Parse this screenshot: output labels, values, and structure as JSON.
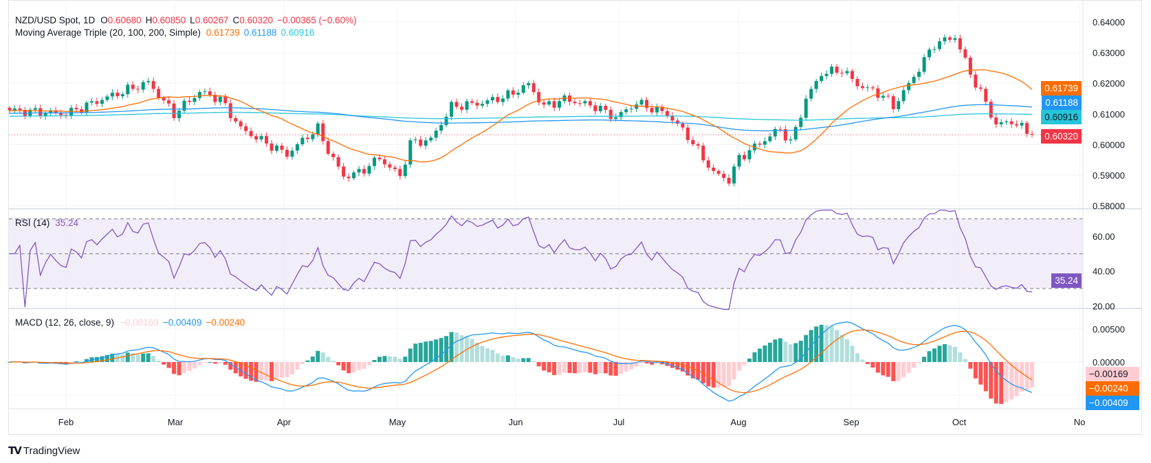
{
  "header": {
    "symbol": "NZD/USD Spot, 1D",
    "open_label": "O",
    "open": "0.60680",
    "high_label": "H",
    "high": "0.60850",
    "low_label": "L",
    "low": "0.60267",
    "close_label": "C",
    "close": "0.60320",
    "change": "−0.00365 (−0.60%)"
  },
  "ma": {
    "label": "Moving Average Triple (20, 100, 200, Simple)",
    "ma20": "0.61739",
    "ma100": "0.61188",
    "ma200": "0.60916"
  },
  "rsi": {
    "label": "RSI (14)",
    "value": "35.24"
  },
  "macd": {
    "label": "MACD (12, 26, close, 9)",
    "histogram": "−0.00169",
    "macd": "−0.00409",
    "signal": "−0.00240"
  },
  "price_axis": [
    "0.64000",
    "0.63000",
    "0.62000",
    "0.61000",
    "0.60000",
    "0.59000",
    "0.58000"
  ],
  "rsi_axis": [
    "60.00",
    "40.00",
    "20.00"
  ],
  "macd_axis": [
    "0.00500",
    "0.00000"
  ],
  "time_axis": [
    "Feb",
    "Mar",
    "Apr",
    "May",
    "Jun",
    "Jul",
    "Aug",
    "Sep",
    "Oct",
    "No"
  ],
  "badges": {
    "ma20": "0.61739",
    "ma100": "0.61188",
    "ma200": "0.60916",
    "last": "0.60320",
    "rsi": "35.24",
    "hist": "−0.00169",
    "signal": "−0.00240",
    "macd": "−0.00409"
  },
  "branding": "TradingView",
  "colors": {
    "up": "#089981",
    "down": "#f23645",
    "ma20": "#ff6d00",
    "ma100": "#2196f3",
    "ma200": "#26c6da",
    "rsi": "#7e57c2",
    "rsi_band": "#ede7f6",
    "macd": "#2196f3",
    "signal": "#ff6d00",
    "hist_up_strong": "#26a69a",
    "hist_up_weak": "#b2dfdb",
    "hist_down_strong": "#ff5252",
    "hist_down_weak": "#ffcdd2",
    "grid": "#f0f3fa"
  },
  "chart_data": {
    "type": "candlestick",
    "title": "NZD/USD Spot, 1D",
    "ylim": [
      0.58,
      0.64
    ],
    "rsi_levels": [
      70,
      50,
      30
    ],
    "rsi_ylim": [
      15,
      75
    ],
    "macd_params": [
      12,
      26,
      9
    ],
    "ma_periods": [
      20,
      100,
      200
    ],
    "grid": true,
    "close_approx": [
      {
        "date": "2024-01-17",
        "close": 0.6112
      },
      {
        "date": "2024-02-01",
        "close": 0.61
      },
      {
        "date": "2024-02-12",
        "close": 0.6148
      },
      {
        "date": "2024-02-23",
        "close": 0.6203
      },
      {
        "date": "2024-03-01",
        "close": 0.61
      },
      {
        "date": "2024-03-08",
        "close": 0.6172
      },
      {
        "date": "2024-03-14",
        "close": 0.6148
      },
      {
        "date": "2024-03-20",
        "close": 0.6052
      },
      {
        "date": "2024-03-27",
        "close": 0.6004
      },
      {
        "date": "2024-04-02",
        "close": 0.5968
      },
      {
        "date": "2024-04-08",
        "close": 0.6028
      },
      {
        "date": "2024-04-10",
        "close": 0.6052
      },
      {
        "date": "2024-04-12",
        "close": 0.598
      },
      {
        "date": "2024-04-17",
        "close": 0.5896
      },
      {
        "date": "2024-04-22",
        "close": 0.5908
      },
      {
        "date": "2024-04-26",
        "close": 0.5956
      },
      {
        "date": "2024-05-02",
        "close": 0.5896
      },
      {
        "date": "2024-05-06",
        "close": 0.6004
      },
      {
        "date": "2024-05-10",
        "close": 0.6016
      },
      {
        "date": "2024-05-16",
        "close": 0.6124
      },
      {
        "date": "2024-05-24",
        "close": 0.6136
      },
      {
        "date": "2024-05-31",
        "close": 0.616
      },
      {
        "date": "2024-06-06",
        "close": 0.6196
      },
      {
        "date": "2024-06-11",
        "close": 0.6124
      },
      {
        "date": "2024-06-17",
        "close": 0.6148
      },
      {
        "date": "2024-06-25",
        "close": 0.6124
      },
      {
        "date": "2024-07-01",
        "close": 0.6088
      },
      {
        "date": "2024-07-05",
        "close": 0.6136
      },
      {
        "date": "2024-07-15",
        "close": 0.61
      },
      {
        "date": "2024-07-19",
        "close": 0.6028
      },
      {
        "date": "2024-07-26",
        "close": 0.5908
      },
      {
        "date": "2024-07-31",
        "close": 0.5884
      },
      {
        "date": "2024-08-02",
        "close": 0.5956
      },
      {
        "date": "2024-08-07",
        "close": 0.5992
      },
      {
        "date": "2024-08-14",
        "close": 0.6052
      },
      {
        "date": "2024-08-16",
        "close": 0.6004
      },
      {
        "date": "2024-08-21",
        "close": 0.6148
      },
      {
        "date": "2024-08-26",
        "close": 0.6232
      },
      {
        "date": "2024-08-30",
        "close": 0.6244
      },
      {
        "date": "2024-09-04",
        "close": 0.6196
      },
      {
        "date": "2024-09-11",
        "close": 0.616
      },
      {
        "date": "2024-09-13",
        "close": 0.6124
      },
      {
        "date": "2024-09-18",
        "close": 0.6196
      },
      {
        "date": "2024-09-25",
        "close": 0.6328
      },
      {
        "date": "2024-10-01",
        "close": 0.6352
      },
      {
        "date": "2024-10-04",
        "close": 0.6232
      },
      {
        "date": "2024-10-09",
        "close": 0.6136
      },
      {
        "date": "2024-10-11",
        "close": 0.6064
      },
      {
        "date": "2024-10-16",
        "close": 0.6076
      },
      {
        "date": "2024-10-22",
        "close": 0.6032
      }
    ]
  }
}
